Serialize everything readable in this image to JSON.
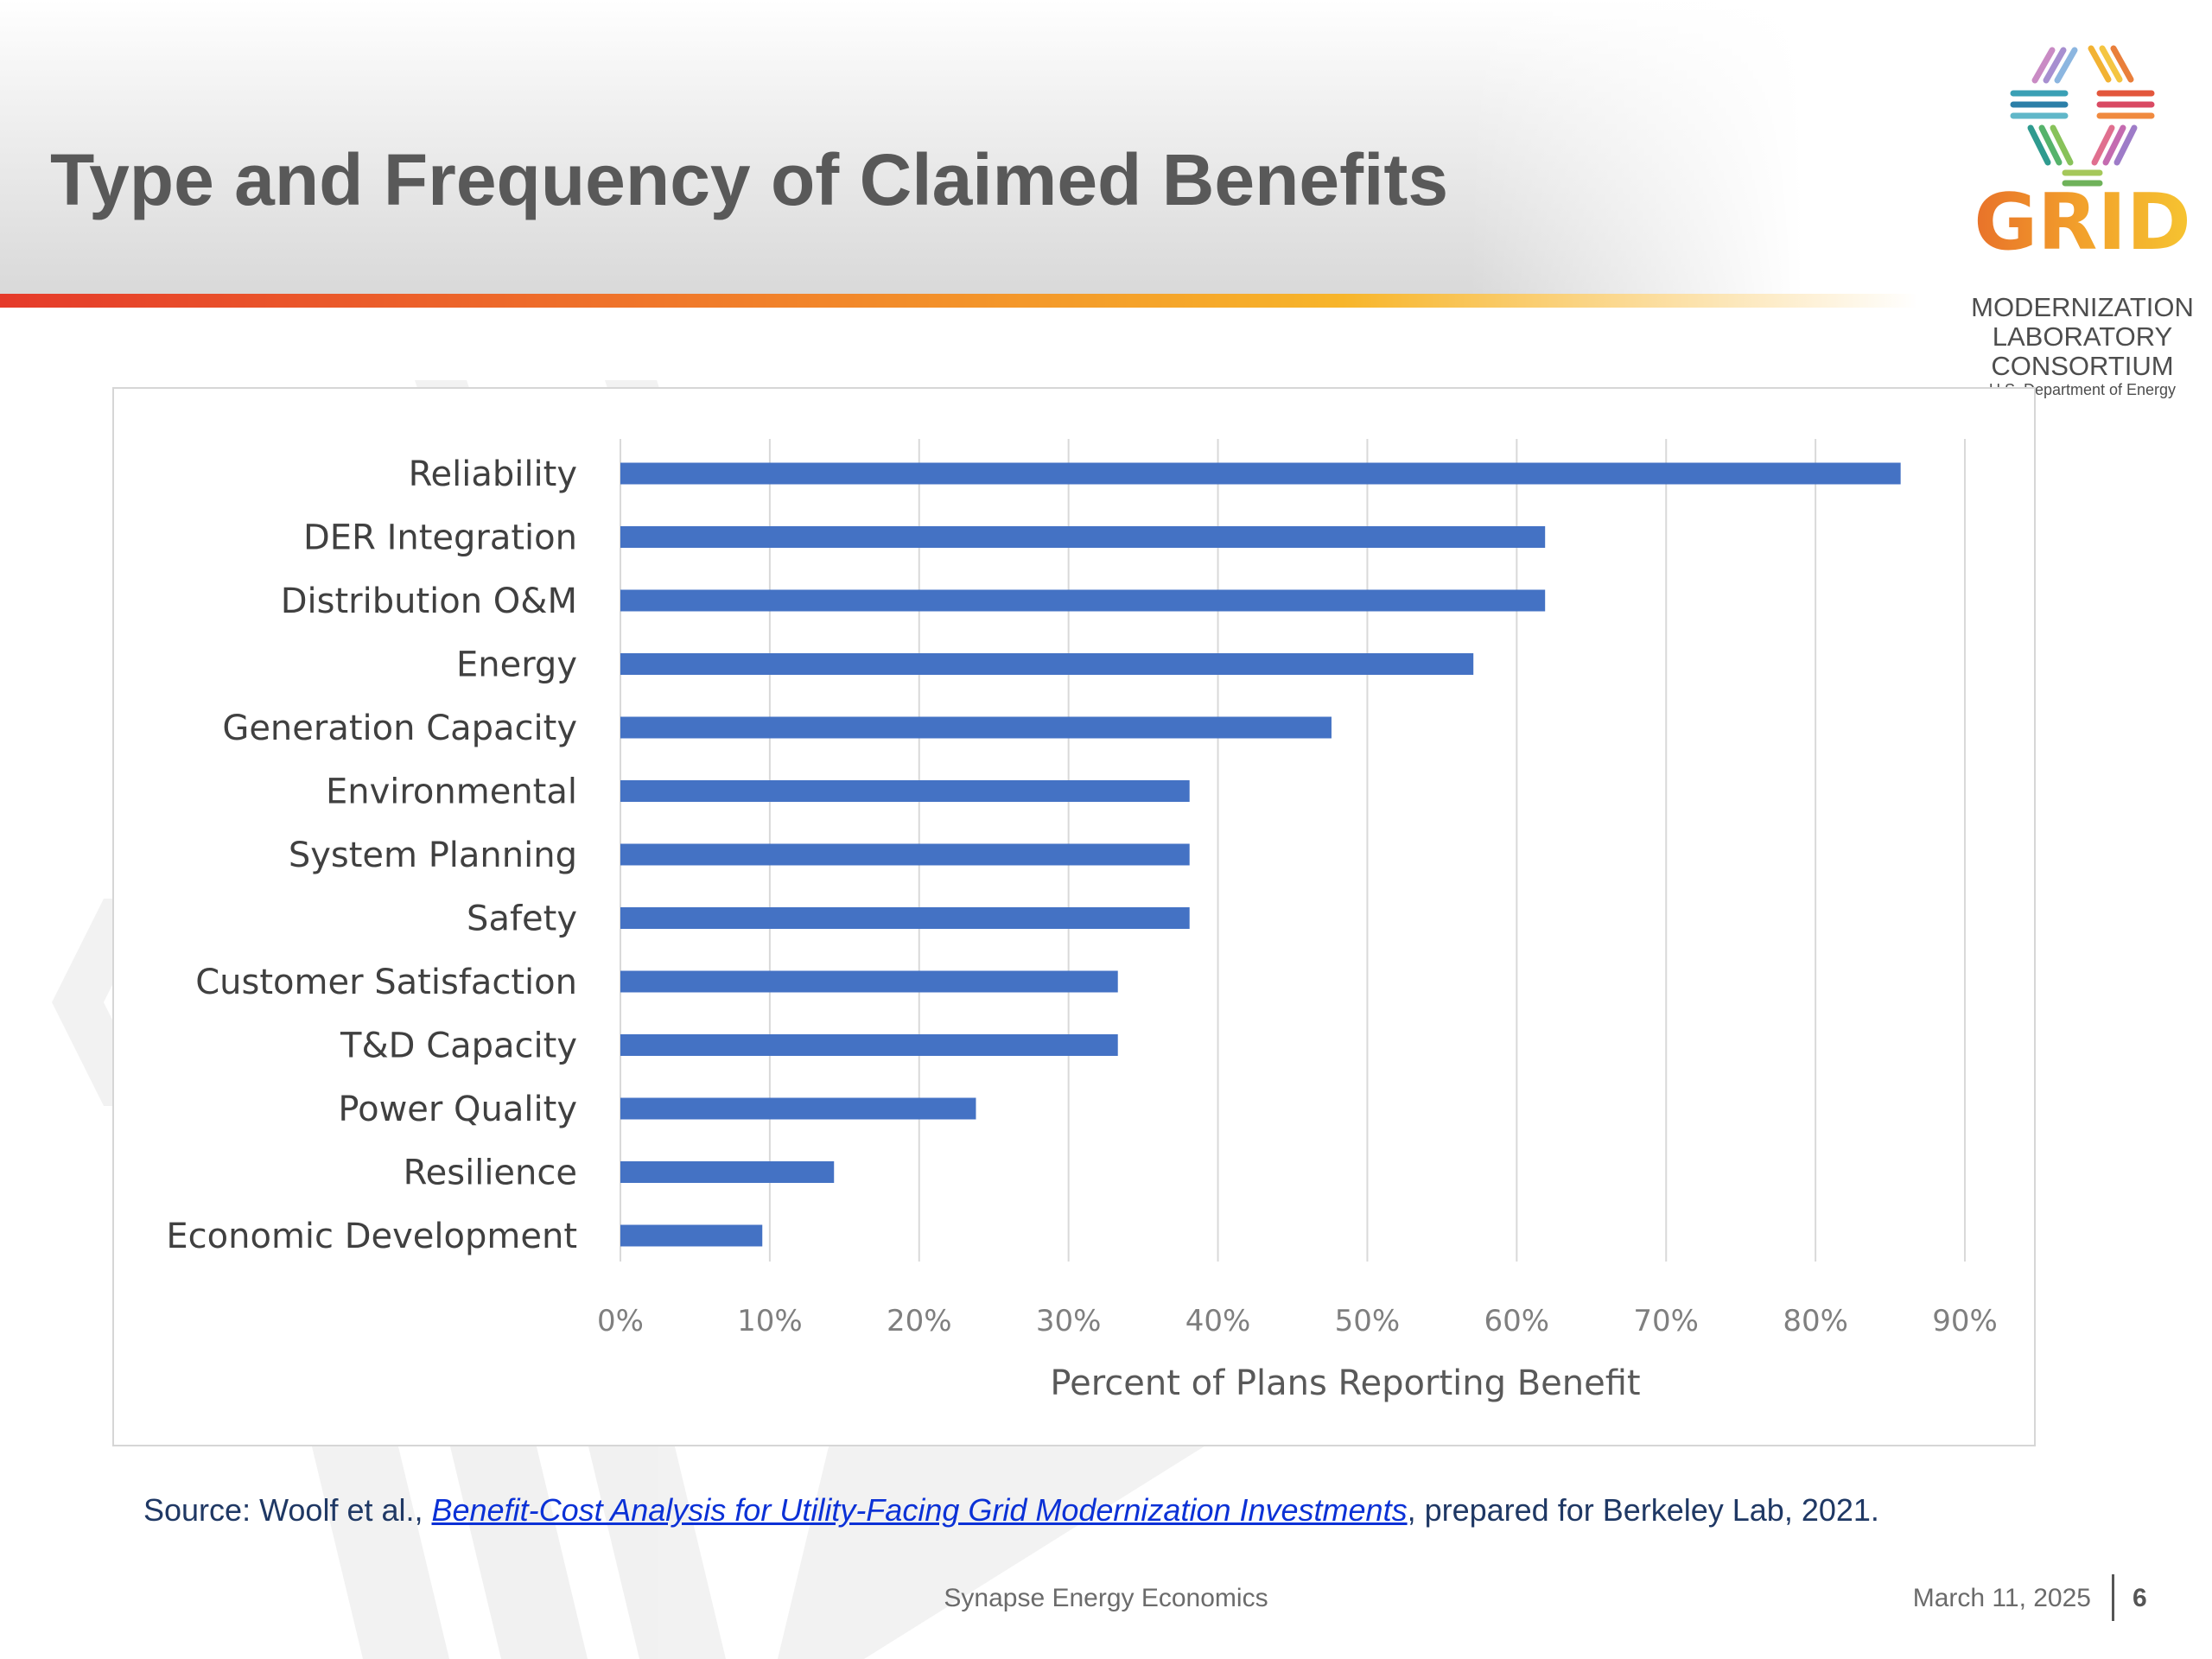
{
  "slide": {
    "title": "Type and Frequency of Claimed Benefits",
    "accent_colors": [
      "#e53a2a",
      "#f0782a",
      "#f7b52a"
    ]
  },
  "logo": {
    "word": "GRID",
    "line1": "MODERNIZATION",
    "line2": "LABORATORY",
    "line3": "CONSORTIUM",
    "line4": "U.S. Department of Energy"
  },
  "chart_data": {
    "type": "bar",
    "orientation": "horizontal",
    "categories": [
      "Reliability",
      "DER Integration",
      "Distribution O&M",
      "Energy",
      "Generation Capacity",
      "Environmental",
      "System Planning",
      "Safety",
      "Customer Satisfaction",
      "T&D Capacity",
      "Power Quality",
      "Resilience",
      "Economic Development"
    ],
    "values": [
      85.7,
      61.9,
      61.9,
      57.1,
      47.6,
      38.1,
      38.1,
      38.1,
      33.3,
      33.3,
      23.8,
      14.3,
      9.5
    ],
    "x_ticks": [
      "0%",
      "10%",
      "20%",
      "30%",
      "40%",
      "50%",
      "60%",
      "70%",
      "80%",
      "90%"
    ],
    "xlim": [
      0,
      90
    ],
    "xlabel": "Percent of Plans Reporting Benefit",
    "grid": "vertical",
    "bar_color": "#4472c4"
  },
  "source": {
    "prefix": "Source: Woolf et al., ",
    "link_text": "Benefit-Cost Analysis for Utility-Facing Grid Modernization Investments",
    "suffix": ", prepared for Berkeley Lab, 2021."
  },
  "footer": {
    "organization": "Synapse Energy Economics",
    "date": "March 11, 2025",
    "page": "6"
  }
}
